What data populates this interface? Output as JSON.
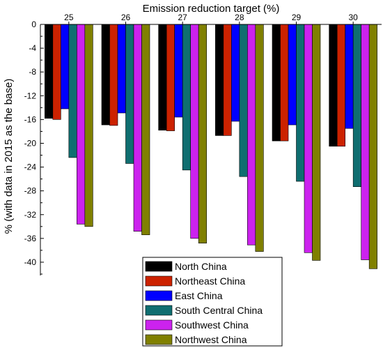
{
  "chart_data": {
    "type": "bar",
    "orientation": "vertical-downward",
    "title": "",
    "xlabel": "Emission reduction target (%)",
    "xlabel_position": "top",
    "ylabel": "% (with data in 2015 as the base)",
    "categories": [
      "25",
      "26",
      "27",
      "28",
      "29",
      "30"
    ],
    "ylim": [
      -42,
      0
    ],
    "yticks": [
      0,
      -4,
      -8,
      -12,
      -16,
      -20,
      -24,
      -28,
      -32,
      -36,
      -40
    ],
    "grid": false,
    "legend_position": "bottom-right",
    "series": [
      {
        "name": "North China",
        "color": "#000000",
        "values": [
          -15.8,
          -16.9,
          -17.8,
          -18.7,
          -19.6,
          -20.5
        ]
      },
      {
        "name": "Northeast China",
        "color": "#cc2200",
        "values": [
          -16.0,
          -17.0,
          -17.9,
          -18.7,
          -19.6,
          -20.5
        ]
      },
      {
        "name": "East China",
        "color": "#0000ff",
        "values": [
          -14.2,
          -14.9,
          -15.6,
          -16.3,
          -16.9,
          -17.5
        ]
      },
      {
        "name": "South Central China",
        "color": "#0f6e70",
        "values": [
          -22.4,
          -23.4,
          -24.5,
          -25.6,
          -26.4,
          -27.3
        ]
      },
      {
        "name": "Southwest China",
        "color": "#cc22ee",
        "values": [
          -33.6,
          -34.8,
          -36.0,
          -37.1,
          -38.4,
          -39.6
        ]
      },
      {
        "name": "Northwest China",
        "color": "#808000",
        "values": [
          -34.0,
          -35.4,
          -36.8,
          -38.2,
          -39.7,
          -41.1
        ]
      }
    ]
  }
}
